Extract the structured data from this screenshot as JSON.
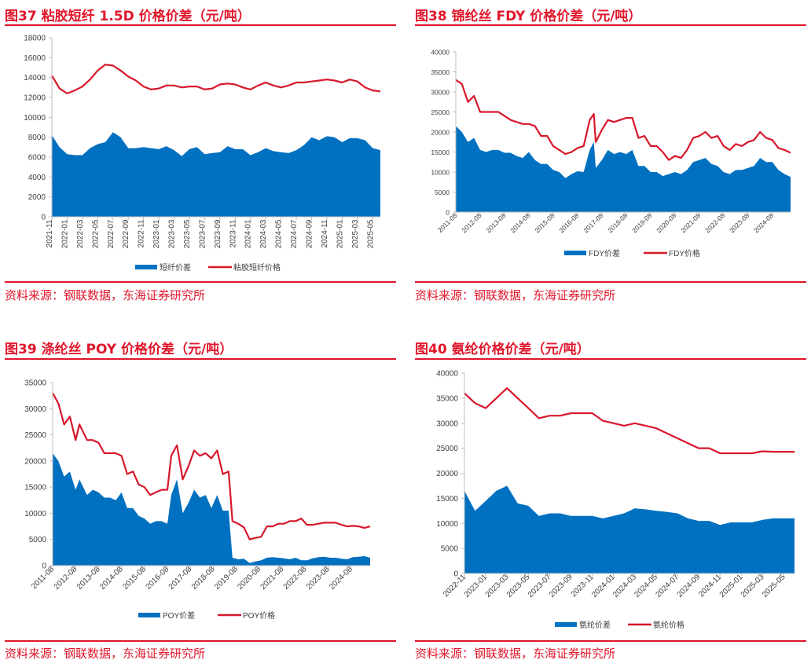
{
  "colors": {
    "spread": "#0070C0",
    "price": "#D7182A",
    "accent": "#E0162B"
  },
  "chart_data": [
    {
      "type": "area+line",
      "title": "图37  粘胶短纤 1.5D 价格价差（元/吨）",
      "source": "资料来源：钢联数据，东海证券研究所",
      "ylim": [
        0,
        18000
      ],
      "yticks": [
        0,
        2000,
        4000,
        6000,
        8000,
        10000,
        12000,
        14000,
        16000,
        18000
      ],
      "xlim": [
        "2021-11",
        "2025-06"
      ],
      "xticks": [
        "2021-11",
        "2022-01",
        "2022-03",
        "2022-05",
        "2022-07",
        "2022-09",
        "2022-11",
        "2023-01",
        "2023-03",
        "2023-05",
        "2023-07",
        "2023-09",
        "2023-11",
        "2024-01",
        "2024-03",
        "2024-05",
        "2024-07",
        "2024-09",
        "2024-11",
        "2025-01",
        "2025-03",
        "2025-05"
      ],
      "legend": "bottom",
      "x": [
        "2021-11",
        "2021-12",
        "2022-01",
        "2022-02",
        "2022-03",
        "2022-04",
        "2022-05",
        "2022-06",
        "2022-07",
        "2022-08",
        "2022-09",
        "2022-10",
        "2022-11",
        "2022-12",
        "2023-01",
        "2023-02",
        "2023-03",
        "2023-04",
        "2023-05",
        "2023-06",
        "2023-07",
        "2023-08",
        "2023-09",
        "2023-10",
        "2023-11",
        "2023-12",
        "2024-01",
        "2024-02",
        "2024-03",
        "2024-04",
        "2024-05",
        "2024-06",
        "2024-07",
        "2024-08",
        "2024-09",
        "2024-10",
        "2024-11",
        "2024-12",
        "2025-01",
        "2025-02",
        "2025-03",
        "2025-04",
        "2025-05",
        "2025-06"
      ],
      "series": [
        {
          "name": "短纤价差",
          "kind": "area",
          "values": [
            8200,
            7000,
            6300,
            6200,
            6200,
            6900,
            7300,
            7500,
            8500,
            8000,
            6900,
            6900,
            7000,
            6900,
            6800,
            7100,
            6700,
            6100,
            6800,
            7000,
            6300,
            6400,
            6500,
            7100,
            6800,
            6800,
            6200,
            6500,
            6900,
            6600,
            6500,
            6400,
            6700,
            7200,
            8000,
            7700,
            8100,
            8000,
            7500,
            7900,
            7900,
            7700,
            6900,
            6700
          ]
        },
        {
          "name": "粘胶短纤价格",
          "kind": "line",
          "values": [
            14200,
            12900,
            12400,
            12700,
            13100,
            13800,
            14700,
            15300,
            15200,
            14700,
            14100,
            13700,
            13100,
            12800,
            12900,
            13200,
            13200,
            13000,
            13100,
            13100,
            12800,
            12900,
            13300,
            13400,
            13300,
            13000,
            12800,
            13200,
            13500,
            13200,
            13000,
            13200,
            13500,
            13500,
            13600,
            13700,
            13800,
            13700,
            13500,
            13800,
            13600,
            13000,
            12700,
            12600
          ]
        }
      ]
    },
    {
      "type": "area+line",
      "title": "图38  锦纶丝 FDY 价格价差（元/吨）",
      "source": "资料来源：钢联数据，东海证券研究所",
      "ylim": [
        0,
        40000
      ],
      "yticks": [
        0,
        5000,
        10000,
        15000,
        20000,
        25000,
        30000,
        35000,
        40000
      ],
      "xlim": [
        "2011-08",
        "2025-05"
      ],
      "xticks": [
        "2011-08",
        "2012-08",
        "2013-08",
        "2014-08",
        "2015-08",
        "2016-08",
        "2017-08",
        "2018-08",
        "2019-08",
        "2020-08",
        "2021-08",
        "2022-08",
        "2023-08",
        "2024-08"
      ],
      "legend": "bottom",
      "x": [
        "2011-08",
        "2011-11",
        "2012-02",
        "2012-05",
        "2012-08",
        "2012-11",
        "2013-02",
        "2013-05",
        "2013-08",
        "2013-11",
        "2014-02",
        "2014-05",
        "2014-08",
        "2014-11",
        "2015-02",
        "2015-05",
        "2015-08",
        "2015-11",
        "2016-02",
        "2016-05",
        "2016-08",
        "2016-11",
        "2017-02",
        "2017-04",
        "2017-05",
        "2017-08",
        "2017-11",
        "2018-02",
        "2018-05",
        "2018-08",
        "2018-11",
        "2019-02",
        "2019-05",
        "2019-08",
        "2019-11",
        "2020-02",
        "2020-05",
        "2020-08",
        "2020-11",
        "2021-02",
        "2021-05",
        "2021-08",
        "2021-11",
        "2022-02",
        "2022-05",
        "2022-08",
        "2022-11",
        "2023-02",
        "2023-05",
        "2023-08",
        "2023-11",
        "2024-02",
        "2024-05",
        "2024-08",
        "2024-11",
        "2025-02",
        "2025-05"
      ],
      "series": [
        {
          "name": "FDY价差",
          "kind": "area",
          "values": [
            21500,
            20000,
            17500,
            18500,
            15500,
            15000,
            15500,
            15500,
            14800,
            14800,
            14000,
            13500,
            15000,
            13000,
            12000,
            12000,
            10500,
            10000,
            8500,
            9500,
            10200,
            10000,
            15500,
            17500,
            11000,
            13000,
            15500,
            14500,
            15000,
            14500,
            15500,
            11500,
            11500,
            10000,
            10000,
            9000,
            9500,
            10000,
            9500,
            10500,
            12500,
            13000,
            13500,
            12000,
            11500,
            10000,
            9500,
            10500,
            10500,
            11000,
            11500,
            13500,
            12500,
            12500,
            10500,
            9500,
            8800
          ]
        },
        {
          "name": "FDY价格",
          "kind": "line",
          "values": [
            33000,
            32000,
            27500,
            29000,
            25000,
            25000,
            25000,
            25000,
            24000,
            23000,
            22500,
            22000,
            22000,
            21500,
            19000,
            19000,
            16500,
            15500,
            14500,
            15000,
            16000,
            16500,
            23000,
            24500,
            17500,
            20500,
            23000,
            22500,
            23000,
            23500,
            23500,
            18500,
            19000,
            16500,
            16500,
            15000,
            13000,
            14000,
            13500,
            15500,
            18500,
            19000,
            20000,
            18500,
            19000,
            16500,
            15500,
            17000,
            16500,
            17500,
            18000,
            20000,
            18500,
            18000,
            16000,
            15500,
            14800
          ]
        }
      ]
    },
    {
      "type": "area+line",
      "title": "图39  涤纶丝 POY 价格价差（元/吨）",
      "source": "资料来源：钢联数据，东海证券研究所",
      "ylim": [
        0,
        35000
      ],
      "yticks": [
        0,
        5000,
        10000,
        15000,
        20000,
        25000,
        30000,
        35000
      ],
      "xlim": [
        "2011-08",
        "2025-06"
      ],
      "xticks": [
        "2011-08",
        "2012-08",
        "2013-08",
        "2014-08",
        "2015-08",
        "2016-08",
        "2017-08",
        "2018-08",
        "2019-08",
        "2020-08",
        "2021-08",
        "2022-08",
        "2023-08",
        "2024-08"
      ],
      "legend": "bottom",
      "x": [
        "2011-08",
        "2011-11",
        "2012-02",
        "2012-05",
        "2012-08",
        "2012-10",
        "2013-02",
        "2013-05",
        "2013-08",
        "2013-11",
        "2014-02",
        "2014-05",
        "2014-08",
        "2014-11",
        "2015-02",
        "2015-05",
        "2015-08",
        "2015-11",
        "2016-02",
        "2016-05",
        "2016-08",
        "2016-10",
        "2017-01",
        "2017-04",
        "2017-07",
        "2017-10",
        "2018-01",
        "2018-04",
        "2018-07",
        "2018-10",
        "2019-01",
        "2019-04",
        "2019-06",
        "2019-09",
        "2019-12",
        "2020-03",
        "2020-06",
        "2020-09",
        "2020-12",
        "2021-03",
        "2021-06",
        "2021-09",
        "2021-12",
        "2022-03",
        "2022-06",
        "2022-09",
        "2022-12",
        "2023-03",
        "2023-06",
        "2023-09",
        "2023-12",
        "2024-03",
        "2024-06",
        "2024-09",
        "2024-12",
        "2025-03",
        "2025-06"
      ],
      "series": [
        {
          "name": "POY价差",
          "kind": "area",
          "values": [
            21500,
            20000,
            17000,
            18000,
            14500,
            16500,
            13500,
            14500,
            14000,
            13000,
            13000,
            12500,
            14000,
            11000,
            11000,
            9500,
            9000,
            8000,
            8500,
            8500,
            8000,
            13500,
            16500,
            10000,
            12000,
            14500,
            13000,
            13500,
            11000,
            13500,
            10500,
            10500,
            1500,
            1200,
            1300,
            500,
            800,
            1000,
            1500,
            1600,
            1500,
            1400,
            1200,
            1500,
            1000,
            1000,
            1400,
            1600,
            1700,
            1500,
            1500,
            1300,
            1200,
            1600,
            1700,
            1800,
            1500
          ]
        },
        {
          "name": "POY价格",
          "kind": "line",
          "values": [
            33000,
            31000,
            27000,
            28500,
            24000,
            27000,
            24000,
            24000,
            23500,
            21500,
            21500,
            21500,
            21000,
            17500,
            18000,
            15500,
            15000,
            13500,
            14000,
            14500,
            14500,
            21000,
            23000,
            16500,
            19000,
            22000,
            21000,
            21500,
            20500,
            22000,
            17500,
            18000,
            8500,
            8000,
            7300,
            5000,
            5300,
            5500,
            7500,
            7500,
            8000,
            8000,
            8500,
            8500,
            9000,
            7800,
            7800,
            8000,
            8200,
            8200,
            8200,
            7800,
            7500,
            7600,
            7500,
            7200,
            7500
          ]
        }
      ]
    },
    {
      "type": "area+line",
      "title": "图40  氨纶价格价差（元/吨）",
      "source": "资料来源：钢联数据，东海证券研究所",
      "ylim": [
        0,
        40000
      ],
      "yticks": [
        0,
        5000,
        10000,
        15000,
        20000,
        25000,
        30000,
        35000,
        40000
      ],
      "xlim": [
        "2022-11",
        "2025-06"
      ],
      "xticks": [
        "2022-11",
        "2023-01",
        "2023-03",
        "2023-05",
        "2023-07",
        "2023-09",
        "2023-11",
        "2024-01",
        "2024-03",
        "2024-05",
        "2024-07",
        "2024-09",
        "2024-11",
        "2025-01",
        "2025-03",
        "2025-05"
      ],
      "legend": "bottom",
      "x": [
        "2022-11",
        "2022-12",
        "2023-01",
        "2023-02",
        "2023-03",
        "2023-04",
        "2023-05",
        "2023-06",
        "2023-07",
        "2023-08",
        "2023-09",
        "2023-10",
        "2023-11",
        "2023-12",
        "2024-01",
        "2024-02",
        "2024-03",
        "2024-04",
        "2024-05",
        "2024-06",
        "2024-07",
        "2024-08",
        "2024-09",
        "2024-10",
        "2024-11",
        "2024-12",
        "2025-01",
        "2025-02",
        "2025-03",
        "2025-04",
        "2025-05",
        "2025-06"
      ],
      "series": [
        {
          "name": "氨纶价差",
          "kind": "area",
          "values": [
            16500,
            12500,
            14500,
            16500,
            17500,
            14000,
            13500,
            11500,
            12000,
            12000,
            11500,
            11500,
            11500,
            11000,
            11500,
            12000,
            13000,
            12800,
            12500,
            12300,
            12000,
            11000,
            10500,
            10500,
            9700,
            10200,
            10200,
            10200,
            10700,
            11000,
            11000,
            11000
          ]
        },
        {
          "name": "氨纶价格",
          "kind": "line",
          "values": [
            36000,
            34000,
            33000,
            35000,
            37000,
            35000,
            33000,
            31000,
            31500,
            31500,
            32000,
            32000,
            32000,
            30500,
            30000,
            29500,
            30000,
            29500,
            29000,
            28000,
            27000,
            26000,
            25000,
            25000,
            24000,
            24000,
            24000,
            24000,
            24400,
            24300,
            24300,
            24300
          ]
        }
      ]
    }
  ]
}
